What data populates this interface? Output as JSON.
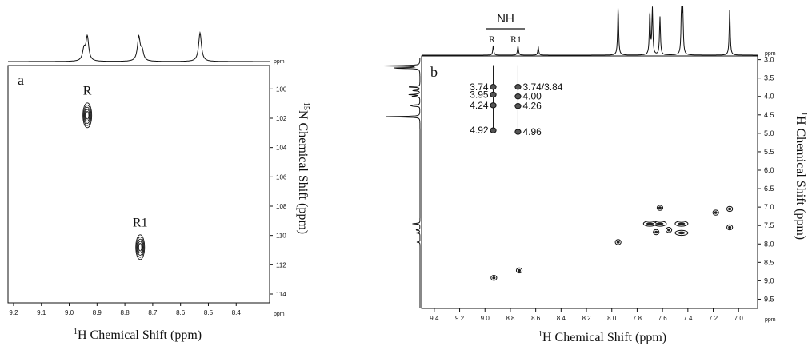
{
  "figure": {
    "panel_a": {
      "label": "a",
      "x_axis_title_sup": "1",
      "x_axis_title": "H Chemical Shift (ppm)",
      "y_axis_title_sup": "15",
      "y_axis_title": "N Chemical Shift (ppm)",
      "x_unit_tag": "ppm",
      "y_unit_tag": "ppm"
    },
    "panel_b": {
      "label": "b",
      "x_axis_title_sup": "1",
      "x_axis_title": "H Chemical Shift (ppm)",
      "y_axis_title_sup": "1",
      "y_axis_title": "H Chemical Shift (ppm)",
      "x_unit_tag": "ppm",
      "y_unit_tag": "ppm",
      "nh_label": "NH",
      "col_label_r": "R",
      "col_label_r1": "R1"
    }
  },
  "chart_data": [
    {
      "type": "scatter",
      "subtype": "2D NMR (1H-15N correlation)",
      "panel": "a",
      "xlabel": "1H Chemical Shift (ppm)",
      "ylabel": "15N Chemical Shift (ppm)",
      "xlim": [
        9.22,
        8.28
      ],
      "ylim": [
        98.4,
        114.6
      ],
      "x_reversed": true,
      "y_inverted": true,
      "x_ticks": [
        9.2,
        9.1,
        9.0,
        8.9,
        8.8,
        8.7,
        8.6,
        8.5,
        8.4
      ],
      "x_tick_labels": [
        "9.2",
        "9.1",
        "9.0",
        "8.9",
        "8.8",
        "8.7",
        "8.6",
        "8.5",
        "8.4"
      ],
      "y_ticks": [
        100,
        102,
        104,
        106,
        108,
        110,
        112,
        114
      ],
      "y_tick_labels": [
        "100",
        "102",
        "104",
        "106",
        "108",
        "110",
        "112",
        "114"
      ],
      "grid": false,
      "peaks": [
        {
          "label": "R",
          "x": 8.935,
          "y": 101.8
        },
        {
          "label": "R1",
          "x": 8.745,
          "y": 110.8
        }
      ],
      "projection_1d_peaks_ppm": [
        8.935,
        8.75,
        8.53
      ]
    },
    {
      "type": "scatter",
      "subtype": "2D NMR (1H-1H correlation)",
      "panel": "b",
      "xlabel": "1H Chemical Shift (ppm)",
      "ylabel": "1H Chemical Shift (ppm)",
      "xlim": [
        9.5,
        6.85
      ],
      "ylim": [
        2.9,
        9.75
      ],
      "x_reversed": true,
      "y_inverted": true,
      "x_ticks": [
        9.4,
        9.2,
        9.0,
        8.8,
        8.6,
        8.4,
        8.2,
        8.0,
        7.8,
        7.6,
        7.4,
        7.2,
        7.0
      ],
      "x_tick_labels": [
        "9.4",
        "9.2",
        "9.0",
        "8.8",
        "8.6",
        "8.4",
        "8.2",
        "8.0",
        "7.8",
        "7.6",
        "7.4",
        "7.2",
        "7.0"
      ],
      "y_ticks": [
        3.0,
        3.5,
        4.0,
        4.5,
        5.0,
        5.5,
        6.0,
        6.5,
        7.0,
        7.5,
        8.0,
        8.5,
        9.0,
        9.5
      ],
      "y_tick_labels": [
        "3.0",
        "3.5",
        "4.0",
        "4.5",
        "5.0",
        "5.5",
        "6.0",
        "6.5",
        "7.0",
        "7.5",
        "8.0",
        "8.5",
        "9.0",
        "9.5"
      ],
      "grid": false,
      "series": [
        {
          "name": "R",
          "x": 8.935,
          "cross_peaks_y": [
            3.74,
            3.95,
            4.24,
            4.92
          ],
          "annotations": [
            "3.74",
            "3.95",
            "4.24",
            "4.92"
          ]
        },
        {
          "name": "R1",
          "x": 8.74,
          "cross_peaks_y": [
            3.74,
            4.0,
            4.26,
            4.96
          ],
          "annotations": [
            "3.74/3.84",
            "4.00",
            "4.26",
            "4.96"
          ]
        }
      ],
      "aromatic_peaks": [
        {
          "x": 7.95,
          "y": 7.95
        },
        {
          "x": 7.62,
          "y": 7.02
        },
        {
          "x": 7.62,
          "y": 7.45
        },
        {
          "x": 7.7,
          "y": 7.45
        },
        {
          "x": 7.45,
          "y": 7.45
        },
        {
          "x": 7.45,
          "y": 7.7
        },
        {
          "x": 7.65,
          "y": 7.68
        },
        {
          "x": 7.55,
          "y": 7.62
        },
        {
          "x": 7.18,
          "y": 7.15
        },
        {
          "x": 7.07,
          "y": 7.05
        },
        {
          "x": 7.07,
          "y": 7.55
        },
        {
          "x": 8.73,
          "y": 8.72
        },
        {
          "x": 8.93,
          "y": 8.92
        }
      ],
      "projection_1d_peaks_ppm": [
        8.935,
        8.74,
        8.58,
        7.95,
        7.7,
        7.68,
        7.62,
        7.45,
        7.44,
        7.07
      ]
    }
  ]
}
